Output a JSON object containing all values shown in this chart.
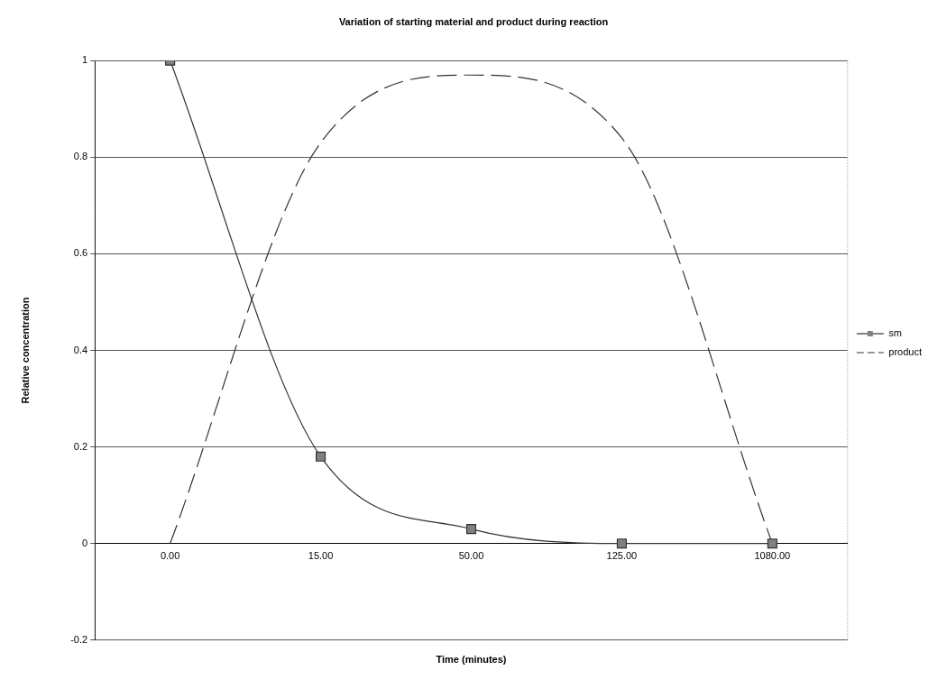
{
  "chart_data": {
    "type": "line",
    "title": "Variation of starting material and product during reaction",
    "xlabel": "Time (minutes)",
    "ylabel": "Relative concentration",
    "categories": [
      "0.00",
      "15.00",
      "50.00",
      "125.00",
      "1080.00"
    ],
    "series": [
      {
        "name": "sm",
        "color": "#333333",
        "values": [
          1,
          0.18,
          0.03,
          0,
          0
        ],
        "marker": "square",
        "line_style": "solid"
      },
      {
        "name": "product",
        "color": "#333333",
        "values": [
          0,
          0.83,
          0.97,
          0.84,
          0
        ],
        "marker": "none",
        "line_style": "dashed"
      }
    ],
    "ylim": [
      -0.2,
      1
    ],
    "yticks": [
      -0.2,
      0,
      0.2,
      0.4,
      0.6,
      0.8,
      1
    ],
    "grid": "y",
    "legend": "right"
  }
}
